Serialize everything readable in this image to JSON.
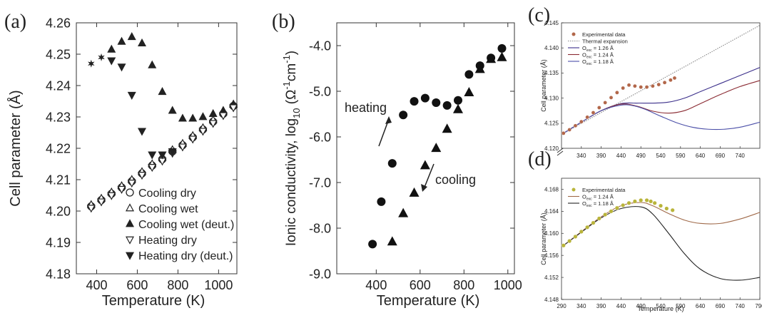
{
  "chart_data": [
    {
      "panel": "(a)",
      "type": "scatter",
      "xlabel": "Temperature (K)",
      "ylabel": "Cell parameter (Å)",
      "xlim": [
        300,
        1090
      ],
      "ylim": [
        4.18,
        4.26
      ],
      "xticks": [
        "400",
        "600",
        "800",
        "1000"
      ],
      "xtick_values": [
        400,
        600,
        800,
        1000
      ],
      "yticks": [
        "4.18",
        "4.19",
        "4.20",
        "4.21",
        "4.22",
        "4.23",
        "4.24",
        "4.25",
        "4.26"
      ],
      "ytick_values": [
        4.18,
        4.19,
        4.2,
        4.21,
        4.22,
        4.23,
        4.24,
        4.25,
        4.26
      ],
      "legend_position": "bottom-right",
      "series": [
        {
          "name": "Cooling dry",
          "marker": "circle-open",
          "x": [
            373,
            423,
            473,
            523,
            573,
            623,
            673,
            723,
            773,
            823,
            873,
            923,
            973,
            1023,
            1073
          ],
          "y": [
            4.2015,
            4.2035,
            4.2055,
            4.2075,
            4.2095,
            4.212,
            4.2145,
            4.2165,
            4.219,
            4.221,
            4.2235,
            4.226,
            4.2285,
            4.231,
            4.2335
          ]
        },
        {
          "name": "Cooling wet",
          "marker": "triangle-up-open",
          "x": [
            373,
            423,
            473,
            523,
            573,
            623,
            673,
            723,
            773,
            823,
            873,
            923,
            973,
            1023,
            1073
          ],
          "y": [
            4.202,
            4.204,
            4.206,
            4.208,
            4.21,
            4.2125,
            4.215,
            4.217,
            4.2195,
            4.2215,
            4.224,
            4.2265,
            4.229,
            4.2315,
            4.234
          ]
        },
        {
          "name": "Cooling wet (deut.)",
          "marker": "triangle-up-filled",
          "x": [
            473,
            523,
            573,
            623,
            673,
            723,
            773,
            823,
            873,
            923,
            973,
            1023,
            1073
          ],
          "y": [
            4.2515,
            4.254,
            4.2555,
            4.2535,
            4.2465,
            4.238,
            4.232,
            4.2295,
            4.2295,
            4.23,
            4.231,
            4.232,
            4.234
          ]
        },
        {
          "name": "Heating dry",
          "marker": "triangle-down-open",
          "x": [
            373,
            423,
            473,
            523,
            573,
            623,
            673,
            723,
            773,
            823,
            873,
            923,
            973,
            1023,
            1073
          ],
          "y": [
            4.201,
            4.203,
            4.205,
            4.207,
            4.209,
            4.2115,
            4.214,
            4.216,
            4.2185,
            4.2205,
            4.223,
            4.2255,
            4.228,
            4.2305,
            4.233
          ]
        },
        {
          "name": "Heating dry (deut.)",
          "marker": "triangle-down-filled",
          "x": [
            473,
            523,
            573,
            623,
            673,
            723,
            773
          ],
          "y": [
            4.248,
            4.246,
            4.237,
            4.2255,
            4.218,
            4.218,
            4.219
          ]
        },
        {
          "name": "",
          "marker": "star",
          "x": [
            373,
            423
          ],
          "y": [
            4.247,
            4.249
          ]
        }
      ]
    },
    {
      "panel": "(b)",
      "type": "scatter",
      "xlabel": "Temperature (K)",
      "ylabel": "Ionic conductivity, log",
      "ylabel_sub": "10",
      "ylabel_unit": " (Ω",
      "ylabel_sup1": "-1",
      "ylabel_unit2": "cm",
      "ylabel_sup2": "-1",
      "ylabel_end": ")",
      "xlim": [
        220,
        1030
      ],
      "ylim": [
        -9.0,
        -3.5
      ],
      "xticks": [
        "400",
        "600",
        "800",
        "1000"
      ],
      "xtick_values": [
        400,
        600,
        800,
        1000
      ],
      "yticks": [
        "-9.0",
        "-8.0",
        "-7.0",
        "-6.0",
        "-5.0",
        "-4.0"
      ],
      "ytick_values": [
        -9.0,
        -8.0,
        -7.0,
        -6.0,
        -5.0,
        -4.0
      ],
      "annotations": [
        "heating",
        "cooling"
      ],
      "series": [
        {
          "name": "heating",
          "marker": "circle-filled",
          "x": [
            383,
            423,
            473,
            523,
            573,
            623,
            673,
            723,
            773,
            823,
            873,
            923,
            973
          ],
          "y": [
            -8.35,
            -7.42,
            -6.58,
            -5.52,
            -5.22,
            -5.15,
            -5.25,
            -5.31,
            -5.2,
            -4.63,
            -4.44,
            -4.27,
            -4.06
          ]
        },
        {
          "name": "cooling",
          "marker": "triangle-up-filled",
          "x": [
            473,
            523,
            573,
            623,
            673,
            723,
            773,
            823,
            873,
            923,
            973
          ],
          "y": [
            -8.3,
            -7.68,
            -7.23,
            -6.63,
            -6.25,
            -5.83,
            -5.4,
            -5.03,
            -4.52,
            -4.3,
            -4.26
          ]
        }
      ]
    },
    {
      "panel": "(c)",
      "type": "line",
      "xlabel": "",
      "ylabel": "Cell parameter (Å)",
      "xlim": [
        290,
        790
      ],
      "ylim": [
        4.12,
        4.145
      ],
      "xticks": [
        "340",
        "390",
        "440",
        "490",
        "540",
        "590",
        "640",
        "690",
        "740"
      ],
      "xtick_values": [
        340,
        390,
        440,
        490,
        540,
        590,
        640,
        690,
        740
      ],
      "yticks": [
        "4.120",
        "4.125",
        "4.130",
        "4.135",
        "4.140",
        "4.145"
      ],
      "ytick_values": [
        4.12,
        4.125,
        4.13,
        4.135,
        4.14,
        4.145
      ],
      "legend": [
        {
          "label": "Experimental data",
          "color": "#b2674a"
        },
        {
          "label": "Thermal expansion",
          "color": "#888888"
        },
        {
          "label_main": "O",
          "label_sub": "exc",
          "label_rest": " = 1.26 Å",
          "color": "#3b2f8a"
        },
        {
          "label_main": "O",
          "label_sub": "exc",
          "label_rest": " = 1.24 Å",
          "color": "#8a2a32"
        },
        {
          "label_main": "O",
          "label_sub": "exc",
          "label_rest": " = 1.18 Å",
          "color": "#4b4fa8"
        }
      ],
      "series": [
        {
          "name": "Experimental data",
          "marker": "circle",
          "color": "#b2674a",
          "x": [
            295,
            310,
            325,
            340,
            355,
            370,
            385,
            400,
            415,
            430,
            445,
            460,
            475,
            490,
            505,
            520,
            535,
            550,
            565,
            575
          ],
          "y": [
            4.123,
            4.1237,
            4.1245,
            4.1253,
            4.1262,
            4.1271,
            4.1281,
            4.1291,
            4.1301,
            4.1311,
            4.132,
            4.1326,
            4.1324,
            4.1322,
            4.1322,
            4.1324,
            4.1327,
            4.1331,
            4.1336,
            4.134
          ]
        },
        {
          "name": "Thermal expansion",
          "color": "#888888",
          "x": [
            295,
            790
          ],
          "y": [
            4.123,
            4.1445
          ]
        },
        {
          "name": "1.26",
          "color": "#3b2f8a",
          "x": [
            295,
            340,
            390,
            440,
            480,
            520,
            560,
            600,
            640,
            690,
            740,
            790
          ],
          "y": [
            4.123,
            4.1252,
            4.1275,
            4.1289,
            4.129,
            4.129,
            4.1292,
            4.13,
            4.1313,
            4.1329,
            4.1345,
            4.1361
          ]
        },
        {
          "name": "1.24",
          "color": "#8a2a32",
          "x": [
            295,
            340,
            390,
            440,
            480,
            520,
            560,
            600,
            640,
            690,
            740,
            790
          ],
          "y": [
            4.123,
            4.1252,
            4.1275,
            4.1288,
            4.1284,
            4.1274,
            4.127,
            4.1275,
            4.1289,
            4.1307,
            4.1323,
            4.1335
          ]
        },
        {
          "name": "1.18",
          "color": "#4b4fa8",
          "x": [
            295,
            340,
            390,
            440,
            470,
            500,
            540,
            580,
            620,
            660,
            700,
            740,
            790
          ],
          "y": [
            4.123,
            4.1252,
            4.1275,
            4.1286,
            4.1285,
            4.1278,
            4.1264,
            4.1251,
            4.1242,
            4.1238,
            4.1238,
            4.1242,
            4.1252
          ]
        }
      ]
    },
    {
      "panel": "(d)",
      "type": "line",
      "xlabel": "Temperature (K)",
      "ylabel": "Cell parameter (Å)",
      "xlim": [
        290,
        790
      ],
      "ylim": [
        4.148,
        4.17
      ],
      "xticks": [
        "290",
        "340",
        "390",
        "440",
        "490",
        "540",
        "590",
        "640",
        "690",
        "740",
        "790"
      ],
      "xtick_values": [
        290,
        340,
        390,
        440,
        490,
        540,
        590,
        640,
        690,
        740,
        790
      ],
      "yticks": [
        "4.148",
        "4.152",
        "4.156",
        "4.160",
        "4.164",
        "4.168"
      ],
      "ytick_values": [
        4.148,
        4.152,
        4.156,
        4.16,
        4.164,
        4.168
      ],
      "legend": [
        {
          "label": "Experimental data",
          "color": "#b9b43a"
        },
        {
          "label_main": "O",
          "label_sub": "exc",
          "label_rest": " = 1.24 Å",
          "color": "#a06a4a"
        },
        {
          "label_main": "O",
          "label_sub": "exc",
          "label_rest": " = 1.18 Å",
          "color": "#222222"
        }
      ],
      "series": [
        {
          "name": "Experimental data",
          "marker": "circle",
          "color": "#b9b43a",
          "x": [
            295,
            310,
            325,
            340,
            355,
            370,
            385,
            400,
            415,
            430,
            445,
            460,
            475,
            490,
            505,
            515,
            525,
            540,
            555,
            570
          ],
          "y": [
            4.1578,
            4.1586,
            4.1594,
            4.1603,
            4.1611,
            4.1619,
            4.1627,
            4.1634,
            4.164,
            4.1646,
            4.1651,
            4.1655,
            4.1658,
            4.166,
            4.166,
            4.1658,
            4.1655,
            4.165,
            4.1645,
            4.1642
          ]
        },
        {
          "name": "1.24",
          "color": "#a06a4a",
          "x": [
            295,
            340,
            390,
            440,
            490,
            520,
            560,
            600,
            640,
            690,
            740,
            790
          ],
          "y": [
            4.1578,
            4.1603,
            4.163,
            4.165,
            4.1656,
            4.165,
            4.1636,
            4.1624,
            4.1618,
            4.1618,
            4.1626,
            4.1638
          ]
        },
        {
          "name": "1.18",
          "color": "#222222",
          "x": [
            295,
            340,
            390,
            440,
            490,
            520,
            560,
            600,
            640,
            690,
            740,
            790
          ],
          "y": [
            4.1578,
            4.1602,
            4.1628,
            4.1645,
            4.1648,
            4.1635,
            4.16,
            4.1563,
            4.1535,
            4.1518,
            4.1515,
            4.152
          ]
        }
      ]
    }
  ]
}
